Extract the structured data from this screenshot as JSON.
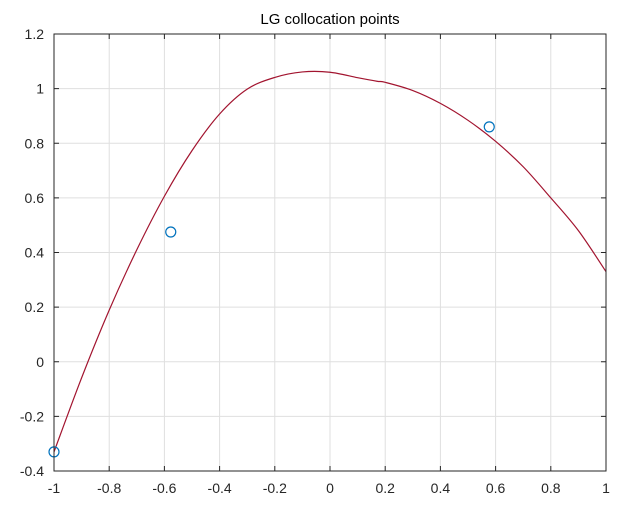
{
  "chart_data": {
    "type": "line",
    "title": "LG collocation points",
    "xlabel": "",
    "ylabel": "",
    "xlim": [
      -1,
      1
    ],
    "ylim": [
      -0.4,
      1.2
    ],
    "x_ticks": [
      -1,
      -0.8,
      -0.6,
      -0.4,
      -0.2,
      0,
      0.2,
      0.4,
      0.6,
      0.8,
      1
    ],
    "x_tick_labels": [
      "-1",
      "-0.8",
      "-0.6",
      "-0.4",
      "-0.2",
      "0",
      "0.2",
      "0.4",
      "0.6",
      "0.8",
      "1"
    ],
    "y_ticks": [
      -0.4,
      -0.2,
      0,
      0.2,
      0.4,
      0.6,
      0.8,
      1,
      1.2
    ],
    "y_tick_labels": [
      "-0.4",
      "-0.2",
      "0",
      "0.2",
      "0.4",
      "0.6",
      "0.8",
      "1",
      "1.2"
    ],
    "grid": true,
    "series": [
      {
        "kind": "line",
        "color": "#a2142f",
        "x": [
          -1,
          -0.9,
          -0.8,
          -0.7,
          -0.6,
          -0.5,
          -0.4,
          -0.3,
          -0.2,
          -0.1,
          0,
          0.1,
          0.17,
          0.2,
          0.3,
          0.4,
          0.5,
          0.6,
          0.7,
          0.8,
          0.9,
          1
        ],
        "y": [
          -0.33,
          -0.059,
          0.189,
          0.41,
          0.606,
          0.773,
          0.907,
          0.998,
          1.041,
          1.061,
          1.06,
          1.04,
          1.027,
          1.023,
          0.993,
          0.946,
          0.884,
          0.807,
          0.714,
          0.6,
          0.48,
          0.33
        ]
      },
      {
        "kind": "markers",
        "marker": "circle",
        "color": "#0072bd",
        "x": [
          -1,
          -0.577,
          0.577
        ],
        "y": [
          -0.33,
          0.475,
          0.86
        ]
      }
    ]
  }
}
